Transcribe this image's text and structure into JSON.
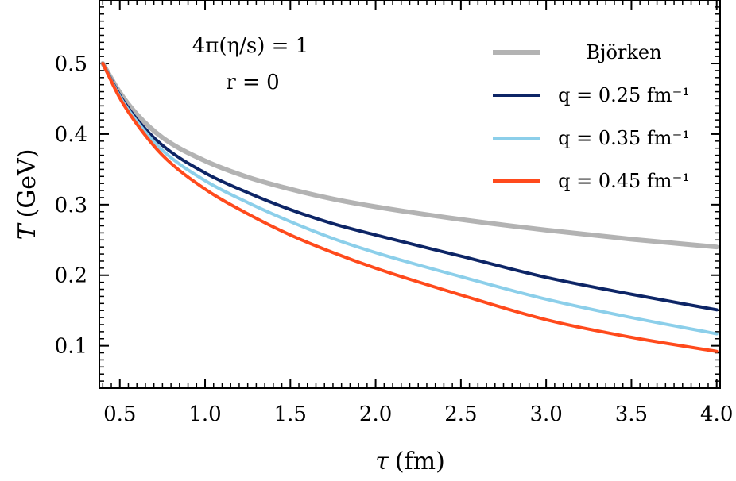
{
  "chart_data": {
    "type": "line",
    "xlabel_symbol": "τ",
    "xlabel_unit": "(fm)",
    "ylabel_symbol": "T",
    "ylabel_unit": "(GeV)",
    "xlim": [
      0.38,
      4.02
    ],
    "ylim": [
      0.04,
      0.59
    ],
    "xticks": [
      0.5,
      1.0,
      1.5,
      2.0,
      2.5,
      3.0,
      3.5,
      4.0
    ],
    "xtick_labels": [
      "0.5",
      "1.0",
      "1.5",
      "2.0",
      "2.5",
      "3.0",
      "3.5",
      "4.0"
    ],
    "yticks": [
      0.1,
      0.2,
      0.3,
      0.4,
      0.5
    ],
    "ytick_labels": [
      "0.1",
      "0.2",
      "0.3",
      "0.4",
      "0.5"
    ],
    "grid": false,
    "legend_position": "top-right",
    "annotations": [
      "4π(η/s) = 1",
      "r = 0"
    ],
    "x": [
      0.4,
      0.5,
      0.6,
      0.75,
      1.0,
      1.25,
      1.5,
      1.75,
      2.0,
      2.5,
      3.0,
      3.5,
      4.0
    ],
    "series": [
      {
        "name": "Björken",
        "color": "#b3b3b3",
        "values": [
          0.5,
          0.459,
          0.428,
          0.395,
          0.362,
          0.339,
          0.322,
          0.308,
          0.297,
          0.279,
          0.264,
          0.251,
          0.24
        ]
      },
      {
        "name": "q = 0.25 fm⁻¹",
        "color": "#0d2566",
        "values": [
          0.5,
          0.455,
          0.421,
          0.384,
          0.345,
          0.317,
          0.293,
          0.273,
          0.257,
          0.227,
          0.197,
          0.173,
          0.151
        ]
      },
      {
        "name": "q = 0.35 fm⁻¹",
        "color": "#8ccfea",
        "values": [
          0.5,
          0.453,
          0.418,
          0.377,
          0.334,
          0.303,
          0.276,
          0.252,
          0.232,
          0.198,
          0.166,
          0.14,
          0.117
        ]
      },
      {
        "name": "q = 0.45 fm⁻¹",
        "color": "#ff4a1c",
        "values": [
          0.5,
          0.451,
          0.414,
          0.37,
          0.322,
          0.287,
          0.257,
          0.232,
          0.21,
          0.172,
          0.137,
          0.112,
          0.092
        ]
      }
    ]
  }
}
